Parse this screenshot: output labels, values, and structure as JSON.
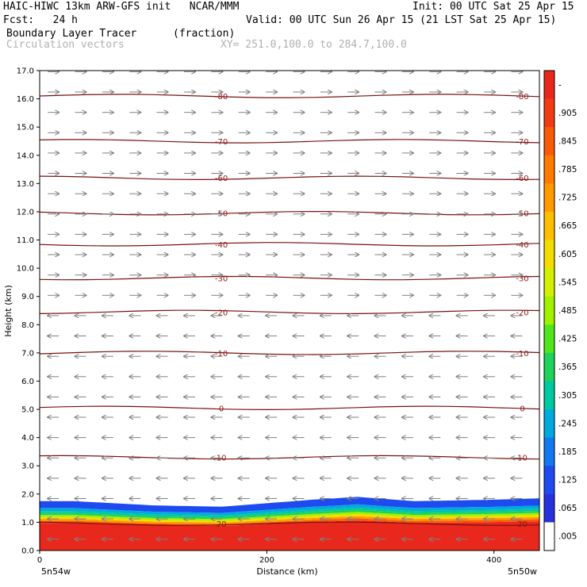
{
  "header": {
    "left_line1": "HAIC-HIWC 13km ARW-GFS init   NCAR/MMM",
    "init": "Init: 00 UTC Sat 25 Apr 15",
    "fcst": "Fcst:   24 h",
    "valid": "Valid: 00 UTC Sun 26 Apr 15 (21 LST Sat 25 Apr 15)",
    "field_name": "Boundary Layer Tracer",
    "field_units": "(fraction)",
    "vector_name": "Circulation vectors",
    "xy_range": "XY= 251.0,100.0 to 284.7,100.0"
  },
  "chart_data": {
    "type": "heatmap",
    "xlabel": "Distance (km)",
    "ylabel": "Height (km)",
    "xlim": [
      0,
      440
    ],
    "ylim": [
      0.0,
      17.0
    ],
    "x_ticks": [
      "0",
      "200",
      "400"
    ],
    "y_ticks": [
      "0.0",
      "1.0",
      "2.0",
      "3.0",
      "4.0",
      "5.0",
      "6.0",
      "7.0",
      "8.0",
      "9.0",
      "10.0",
      "11.0",
      "12.0",
      "13.0",
      "14.0",
      "15.0",
      "16.0",
      "17.0"
    ],
    "left_endpoint_label": "5n54w",
    "right_endpoint_label": "5n50w",
    "colorbar_labels": [
      "-",
      ".905",
      ".845",
      ".785",
      ".725",
      ".665",
      ".605",
      ".545",
      ".485",
      ".425",
      ".365",
      ".305",
      ".245",
      ".185",
      ".125",
      ".065",
      ".005"
    ],
    "colorbar_colors": [
      "#e8281c",
      "#f03c14",
      "#f85a0a",
      "#ff7a00",
      "#ff9a00",
      "#ffbe00",
      "#f5dc00",
      "#d2f000",
      "#a0f000",
      "#50e61e",
      "#1ed25a",
      "#00c8a0",
      "#00aadc",
      "#1478f0",
      "#1e4bf0",
      "#2832dc",
      "#ffffff"
    ],
    "temperature_contours": [
      {
        "label": "-80",
        "height_km": 16.1
      },
      {
        "label": "-70",
        "height_km": 14.5
      },
      {
        "label": "-60",
        "height_km": 13.2
      },
      {
        "label": "-50",
        "height_km": 11.95
      },
      {
        "label": "-40",
        "height_km": 10.85
      },
      {
        "label": "-30",
        "height_km": 9.65
      },
      {
        "label": "-20",
        "height_km": 8.45
      },
      {
        "label": "-10",
        "height_km": 7.0
      },
      {
        "label": "0",
        "height_km": 5.05
      },
      {
        "label": "10",
        "height_km": 3.3
      },
      {
        "label": "20",
        "height_km": 0.95
      }
    ],
    "boundary_layer_top_km": [
      {
        "x": 0,
        "y": 1.75
      },
      {
        "x": 30,
        "y": 1.75
      },
      {
        "x": 100,
        "y": 1.6
      },
      {
        "x": 160,
        "y": 1.55
      },
      {
        "x": 240,
        "y": 1.8
      },
      {
        "x": 280,
        "y": 1.9
      },
      {
        "x": 330,
        "y": 1.75
      },
      {
        "x": 400,
        "y": 1.8
      },
      {
        "x": 440,
        "y": 1.85
      }
    ],
    "wind_regimes": [
      {
        "from_km": 9.0,
        "to_km": 17.0,
        "direction": "eastward"
      },
      {
        "from_km": 0.0,
        "to_km": 9.0,
        "direction": "westward"
      }
    ]
  }
}
